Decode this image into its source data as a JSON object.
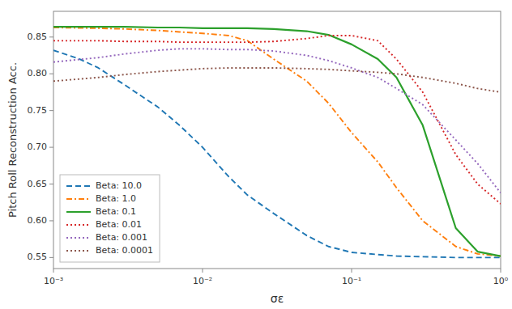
{
  "chart_data": {
    "type": "line",
    "xlabel": "σε",
    "ylabel": "Pitch Roll Reconstruction Acc.",
    "log": "x",
    "xlim": [
      0.001,
      1
    ],
    "xticks": [
      {
        "value": 0.001,
        "label": "10⁻³"
      },
      {
        "value": 0.01,
        "label": "10⁻²"
      },
      {
        "value": 0.1,
        "label": "10⁻¹"
      },
      {
        "value": 1,
        "label": "10⁰"
      }
    ],
    "ylim": [
      0.535,
      0.885
    ],
    "yticks": [
      0.55,
      {
        "value": 0.6,
        "label": "0.60"
      },
      0.65,
      {
        "value": 0.7,
        "label": "0.70"
      },
      0.75,
      {
        "value": 0.8,
        "label": "0.80"
      },
      0.85
    ],
    "grid": false,
    "legend": "lower left",
    "series": [
      {
        "name": "Beta: 10.0",
        "color": "#1f77b4",
        "line_style": "dashed",
        "x": [
          0.001,
          0.0015,
          0.002,
          0.003,
          0.004,
          0.005,
          0.007,
          0.01,
          0.015,
          0.02,
          0.03,
          0.05,
          0.07,
          0.1,
          0.2,
          0.5,
          1.0
        ],
        "values": [
          0.832,
          0.82,
          0.808,
          0.785,
          0.768,
          0.755,
          0.73,
          0.7,
          0.66,
          0.635,
          0.61,
          0.58,
          0.565,
          0.557,
          0.552,
          0.55,
          0.55
        ]
      },
      {
        "name": "Beta: 1.0",
        "color": "#ff7f0e",
        "line_style": "dashdot",
        "x": [
          0.001,
          0.002,
          0.003,
          0.005,
          0.007,
          0.01,
          0.015,
          0.02,
          0.03,
          0.05,
          0.07,
          0.1,
          0.15,
          0.2,
          0.3,
          0.5,
          0.7,
          1.0
        ],
        "values": [
          0.863,
          0.862,
          0.861,
          0.859,
          0.857,
          0.855,
          0.852,
          0.845,
          0.82,
          0.79,
          0.76,
          0.72,
          0.68,
          0.645,
          0.6,
          0.565,
          0.555,
          0.552
        ]
      },
      {
        "name": "Beta: 0.1",
        "color": "#2ca02c",
        "line_style": "solid",
        "x": [
          0.001,
          0.002,
          0.003,
          0.005,
          0.007,
          0.01,
          0.015,
          0.02,
          0.03,
          0.05,
          0.07,
          0.1,
          0.15,
          0.2,
          0.3,
          0.5,
          0.7,
          1.0
        ],
        "values": [
          0.864,
          0.864,
          0.864,
          0.863,
          0.863,
          0.862,
          0.862,
          0.862,
          0.861,
          0.858,
          0.853,
          0.84,
          0.82,
          0.795,
          0.73,
          0.59,
          0.558,
          0.552
        ]
      },
      {
        "name": "Beta: 0.01",
        "color": "#d62728",
        "line_style": "dotted",
        "x": [
          0.001,
          0.002,
          0.003,
          0.005,
          0.007,
          0.01,
          0.015,
          0.02,
          0.03,
          0.05,
          0.07,
          0.1,
          0.15,
          0.2,
          0.3,
          0.5,
          0.7,
          1.0
        ],
        "values": [
          0.845,
          0.845,
          0.844,
          0.844,
          0.843,
          0.843,
          0.843,
          0.843,
          0.844,
          0.848,
          0.852,
          0.852,
          0.845,
          0.82,
          0.775,
          0.69,
          0.65,
          0.623
        ]
      },
      {
        "name": "Beta: 0.001",
        "color": "#9467bd",
        "line_style": "dotted",
        "x": [
          0.001,
          0.002,
          0.003,
          0.005,
          0.007,
          0.01,
          0.015,
          0.02,
          0.03,
          0.05,
          0.07,
          0.1,
          0.15,
          0.2,
          0.3,
          0.5,
          0.7,
          1.0
        ],
        "values": [
          0.816,
          0.822,
          0.827,
          0.832,
          0.834,
          0.834,
          0.833,
          0.833,
          0.831,
          0.825,
          0.818,
          0.808,
          0.795,
          0.78,
          0.758,
          0.71,
          0.678,
          0.638
        ]
      },
      {
        "name": "Beta: 0.0001",
        "color": "#8c564b",
        "line_style": "dotted",
        "x": [
          0.001,
          0.002,
          0.003,
          0.005,
          0.007,
          0.01,
          0.015,
          0.02,
          0.03,
          0.05,
          0.07,
          0.1,
          0.15,
          0.2,
          0.3,
          0.5,
          0.7,
          1.0
        ],
        "values": [
          0.79,
          0.795,
          0.799,
          0.803,
          0.805,
          0.807,
          0.808,
          0.808,
          0.808,
          0.807,
          0.806,
          0.804,
          0.802,
          0.8,
          0.795,
          0.787,
          0.78,
          0.775
        ]
      }
    ]
  }
}
